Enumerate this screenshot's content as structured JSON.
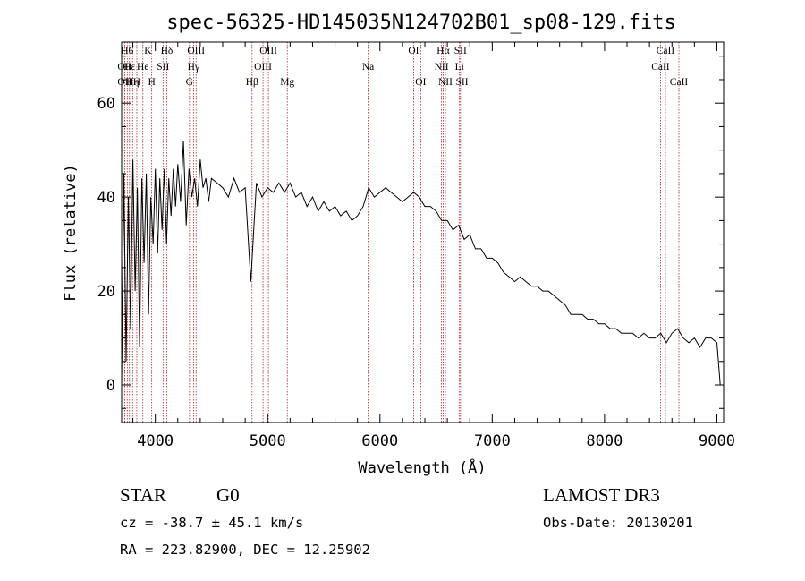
{
  "chart_data": {
    "type": "line",
    "title": "spec-56325-HD145035N124702B01_sp08-129.fits",
    "xlabel": "Wavelength (Å)",
    "ylabel": "Flux (relative)",
    "xlim": [
      3700,
      9060
    ],
    "ylim": [
      -8,
      73
    ],
    "x_ticks": [
      4000,
      5000,
      6000,
      7000,
      8000,
      9000
    ],
    "y_ticks": [
      0,
      20,
      40,
      60
    ],
    "series": [
      {
        "name": "spectrum",
        "x": [
          3700,
          3720,
          3740,
          3760,
          3780,
          3800,
          3820,
          3840,
          3860,
          3880,
          3900,
          3920,
          3940,
          3960,
          3980,
          4000,
          4020,
          4040,
          4060,
          4080,
          4100,
          4120,
          4140,
          4160,
          4180,
          4200,
          4225,
          4250,
          4275,
          4300,
          4325,
          4350,
          4375,
          4400,
          4425,
          4450,
          4475,
          4500,
          4550,
          4600,
          4650,
          4700,
          4750,
          4800,
          4850,
          4900,
          4950,
          5000,
          5050,
          5100,
          5150,
          5200,
          5250,
          5300,
          5350,
          5400,
          5450,
          5500,
          5550,
          5600,
          5650,
          5700,
          5750,
          5800,
          5850,
          5900,
          5950,
          6000,
          6050,
          6100,
          6150,
          6200,
          6250,
          6300,
          6350,
          6400,
          6450,
          6500,
          6550,
          6600,
          6650,
          6700,
          6750,
          6800,
          6850,
          6900,
          6950,
          7000,
          7050,
          7100,
          7150,
          7200,
          7250,
          7300,
          7350,
          7400,
          7450,
          7500,
          7550,
          7600,
          7650,
          7700,
          7750,
          7800,
          7850,
          7900,
          7950,
          8000,
          8050,
          8100,
          8150,
          8200,
          8250,
          8300,
          8350,
          8400,
          8450,
          8500,
          8550,
          8600,
          8650,
          8700,
          8750,
          8800,
          8850,
          8900,
          8950,
          9000,
          9020,
          9030
        ],
        "y": [
          0,
          45,
          5,
          40,
          12,
          48,
          20,
          42,
          8,
          44,
          26,
          45,
          15,
          40,
          30,
          46,
          28,
          44,
          33,
          46,
          30,
          44,
          36,
          46,
          38,
          47,
          39,
          52,
          34,
          46,
          40,
          44,
          38,
          48,
          42,
          44,
          39,
          44,
          43,
          42,
          40,
          44,
          41,
          42,
          22,
          43,
          40,
          42,
          41,
          43,
          41,
          43,
          40,
          41,
          38,
          40,
          37,
          39,
          37,
          38,
          36,
          37,
          35,
          36,
          38,
          42,
          40,
          41,
          42,
          41,
          40,
          39,
          40,
          41,
          40,
          38,
          38,
          37,
          35,
          35,
          33,
          34,
          31,
          32,
          29,
          29,
          27,
          27,
          26,
          24,
          23,
          22,
          23,
          22,
          21,
          21,
          20,
          20,
          19,
          18,
          17,
          15,
          15,
          15,
          14,
          14,
          13,
          13,
          12,
          12,
          11,
          11,
          11,
          10,
          11,
          10,
          10,
          11,
          9,
          11,
          12,
          10,
          9,
          10,
          8,
          10,
          10,
          9,
          3,
          0
        ]
      }
    ],
    "lines": [
      {
        "wl": 3727,
        "label": "OII",
        "row": 1
      },
      {
        "wl": 3727,
        "label": "OII",
        "row": 2
      },
      {
        "wl": 3750,
        "label": "H6",
        "row": 0
      },
      {
        "wl": 3770,
        "label": "Hε",
        "row": 1
      },
      {
        "wl": 3798,
        "label": "Hη",
        "row": 2
      },
      {
        "wl": 3835,
        "label": "H",
        "row": 2
      },
      {
        "wl": 3889,
        "label": "He",
        "row": 1
      },
      {
        "wl": 3934,
        "label": "K",
        "row": 0
      },
      {
        "wl": 3968,
        "label": "H",
        "row": 2
      },
      {
        "wl": 4069,
        "label": "SII",
        "row": 1
      },
      {
        "wl": 4102,
        "label": "Hδ",
        "row": 0
      },
      {
        "wl": 4304,
        "label": "G",
        "row": 2
      },
      {
        "wl": 4340,
        "label": "Hγ",
        "row": 1
      },
      {
        "wl": 4363,
        "label": "OIII",
        "row": 0
      },
      {
        "wl": 4861,
        "label": "Hβ",
        "row": 2
      },
      {
        "wl": 4959,
        "label": "OIII",
        "row": 1
      },
      {
        "wl": 5007,
        "label": "OIII",
        "row": 0
      },
      {
        "wl": 5175,
        "label": "Mg",
        "row": 2
      },
      {
        "wl": 5894,
        "label": "Na",
        "row": 1
      },
      {
        "wl": 6300,
        "label": "OI",
        "row": 0
      },
      {
        "wl": 6363,
        "label": "OI",
        "row": 2
      },
      {
        "wl": 6548,
        "label": "NII",
        "row": 1
      },
      {
        "wl": 6563,
        "label": "Hα",
        "row": 0
      },
      {
        "wl": 6583,
        "label": "NII",
        "row": 2
      },
      {
        "wl": 6708,
        "label": "Li",
        "row": 1
      },
      {
        "wl": 6717,
        "label": "SII",
        "row": 0
      },
      {
        "wl": 6731,
        "label": "SII",
        "row": 2
      },
      {
        "wl": 8498,
        "label": "CaII",
        "row": 1
      },
      {
        "wl": 8542,
        "label": "CaII",
        "row": 0
      },
      {
        "wl": 8662,
        "label": "CaII",
        "row": 2
      }
    ]
  },
  "info": {
    "class_label": "STAR",
    "subclass": "G0",
    "survey": "LAMOST DR3",
    "cz": "cz = -38.7 ± 45.1 km/s",
    "obs_date": "Obs-Date: 20130201",
    "radec": "RA = 223.82900, DEC =  12.25902"
  }
}
